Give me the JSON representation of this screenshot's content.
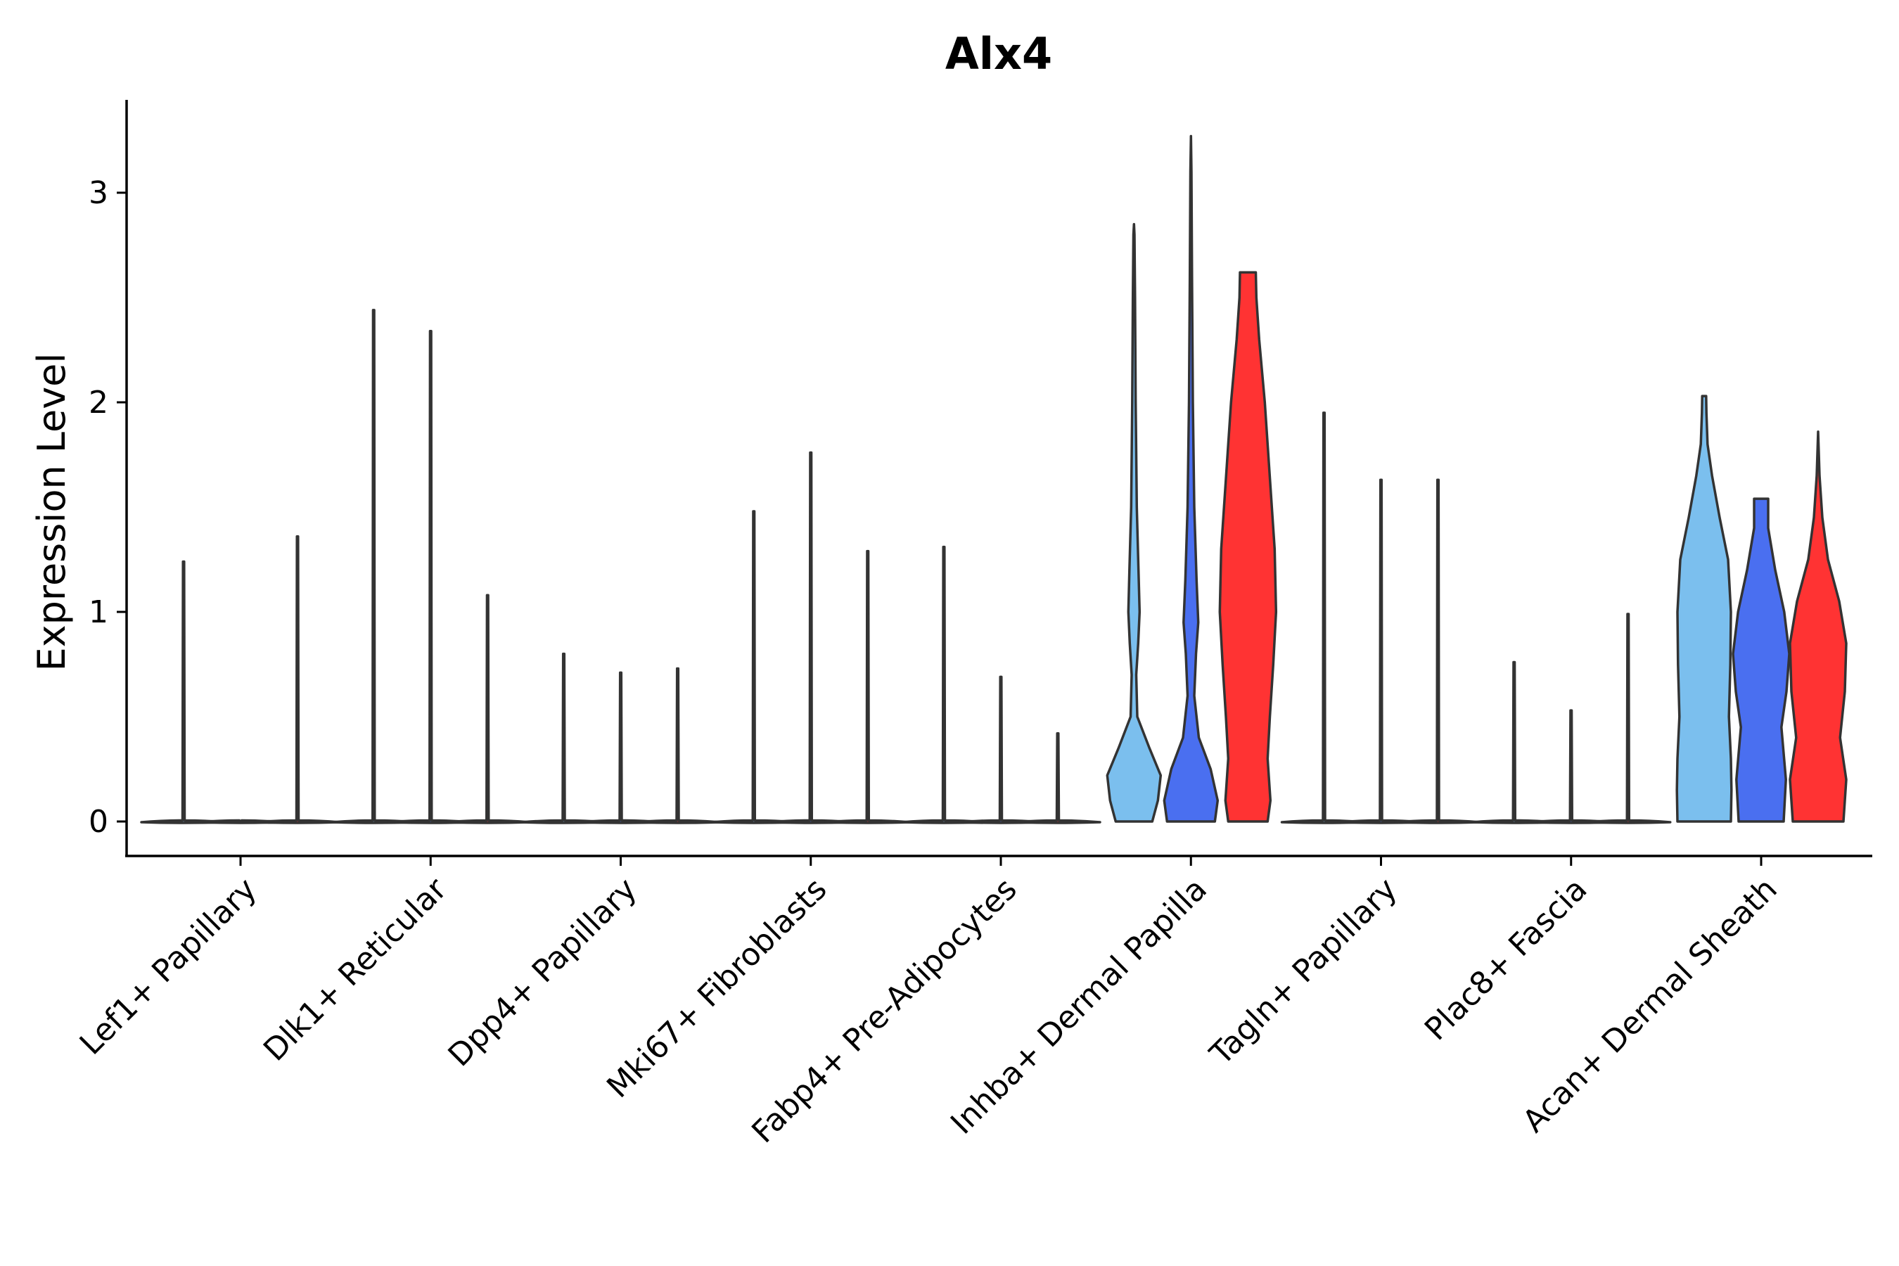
{
  "chart_data": {
    "type": "violin",
    "title": "Alx4",
    "xlabel": "",
    "ylabel": "Expression Level",
    "ylim": [
      -0.17,
      3.45
    ],
    "yticks": [
      0,
      1,
      2,
      3
    ],
    "ytick_labels": [
      "0",
      "1",
      "2",
      "3"
    ],
    "categories": [
      "Lef1+ Papillary",
      "Dlk1+ Reticular",
      "Dpp4+ Papillary",
      "Mki67+ Fibroblasts",
      "Fabp4+ Pre-Adipocytes",
      "Inhba+ Dermal Papilla",
      "Tagln+ Papillary",
      "Plac8+ Fascia",
      "Acan+ Dermal Sheath"
    ],
    "series_colors": [
      "#7bbfee",
      "#4a6ff0",
      "#ff3333"
    ],
    "groups": [
      {
        "max": [
          1.24,
          0.0,
          1.36
        ]
      },
      {
        "max": [
          2.44,
          2.34,
          1.08
        ]
      },
      {
        "max": [
          0.8,
          0.71,
          0.73
        ]
      },
      {
        "max": [
          1.48,
          1.76,
          1.29
        ]
      },
      {
        "max": [
          1.31,
          0.69,
          0.42
        ]
      },
      {
        "max": [
          2.85,
          3.27,
          2.62
        ],
        "profiles": [
          [
            [
              0,
              0.65
            ],
            [
              0.1,
              0.85
            ],
            [
              0.22,
              0.95
            ],
            [
              0.35,
              0.55
            ],
            [
              0.5,
              0.12
            ],
            [
              0.7,
              0.08
            ],
            [
              0.85,
              0.15
            ],
            [
              1.0,
              0.2
            ],
            [
              1.2,
              0.16
            ],
            [
              1.5,
              0.1
            ],
            [
              2.0,
              0.06
            ],
            [
              2.5,
              0.04
            ],
            [
              2.8,
              0.02
            ],
            [
              2.85,
              0
            ]
          ],
          [
            [
              0,
              0.85
            ],
            [
              0.1,
              0.95
            ],
            [
              0.25,
              0.7
            ],
            [
              0.4,
              0.28
            ],
            [
              0.6,
              0.12
            ],
            [
              0.8,
              0.18
            ],
            [
              0.95,
              0.26
            ],
            [
              1.15,
              0.2
            ],
            [
              1.5,
              0.12
            ],
            [
              2.0,
              0.07
            ],
            [
              2.6,
              0.04
            ],
            [
              3.1,
              0.02
            ],
            [
              3.27,
              0
            ]
          ],
          [
            [
              0,
              0.7
            ],
            [
              0.1,
              0.8
            ],
            [
              0.3,
              0.7
            ],
            [
              0.5,
              0.78
            ],
            [
              0.75,
              0.9
            ],
            [
              1.0,
              1.0
            ],
            [
              1.3,
              0.95
            ],
            [
              1.6,
              0.8
            ],
            [
              2.0,
              0.6
            ],
            [
              2.3,
              0.4
            ],
            [
              2.5,
              0.3
            ],
            [
              2.62,
              0.28
            ]
          ]
        ]
      },
      {
        "max": [
          1.95,
          1.63,
          1.63
        ]
      },
      {
        "max": [
          0.76,
          0.53,
          0.99
        ]
      },
      {
        "max": [
          2.03,
          1.54,
          1.86
        ],
        "profiles": [
          [
            [
              0,
              0.95
            ],
            [
              0.15,
              0.97
            ],
            [
              0.3,
              0.95
            ],
            [
              0.5,
              0.88
            ],
            [
              0.75,
              0.93
            ],
            [
              1.0,
              0.95
            ],
            [
              1.25,
              0.85
            ],
            [
              1.45,
              0.55
            ],
            [
              1.65,
              0.28
            ],
            [
              1.8,
              0.12
            ],
            [
              1.95,
              0.08
            ],
            [
              2.03,
              0.07
            ]
          ],
          [
            [
              0,
              0.8
            ],
            [
              0.2,
              0.88
            ],
            [
              0.45,
              0.72
            ],
            [
              0.62,
              0.9
            ],
            [
              0.8,
              1.0
            ],
            [
              1.0,
              0.82
            ],
            [
              1.2,
              0.5
            ],
            [
              1.4,
              0.25
            ],
            [
              1.54,
              0.25
            ]
          ],
          [
            [
              0,
              0.9
            ],
            [
              0.2,
              1.0
            ],
            [
              0.4,
              0.78
            ],
            [
              0.62,
              0.95
            ],
            [
              0.85,
              1.0
            ],
            [
              1.05,
              0.75
            ],
            [
              1.25,
              0.35
            ],
            [
              1.45,
              0.15
            ],
            [
              1.65,
              0.05
            ],
            [
              1.86,
              0
            ]
          ]
        ]
      }
    ]
  }
}
